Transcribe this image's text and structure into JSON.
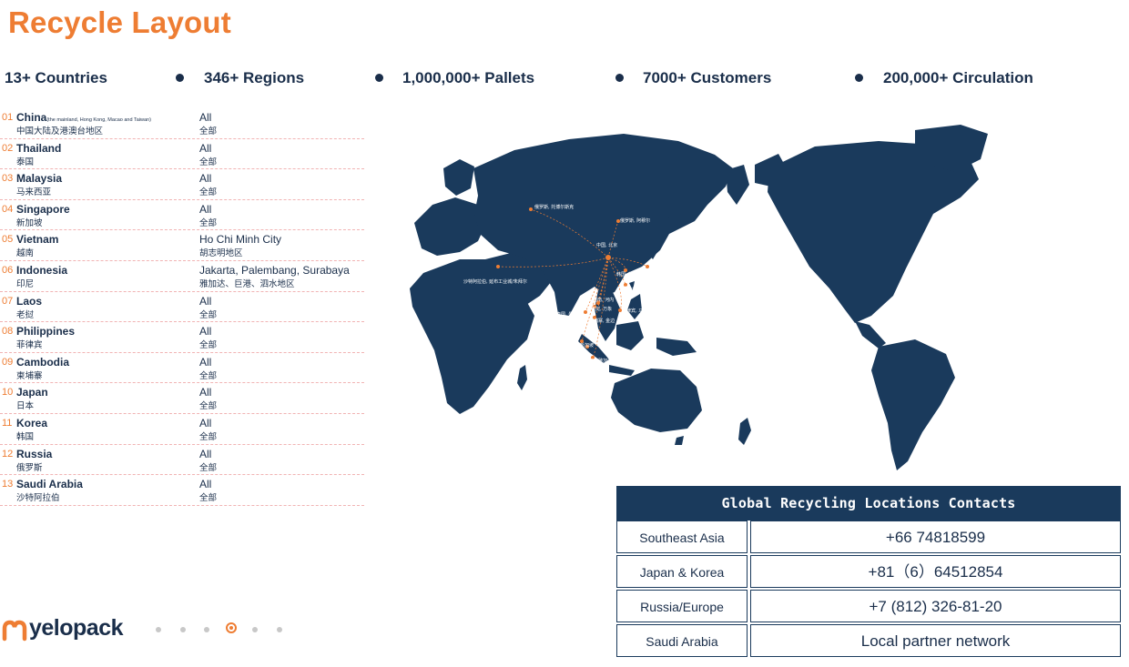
{
  "title": "Recycle Layout",
  "stats": [
    "13+ Countries",
    "346+ Regions",
    "1,000,000+ Pallets",
    "7000+ Customers",
    "200,000+ Circulation"
  ],
  "countries": [
    {
      "num": "01",
      "name": "China",
      "note": "(the mainland, Hong Kong, Macao and Taiwan)",
      "cn": "中国大陆及港澳台地区",
      "region": "All",
      "region_cn": "全部"
    },
    {
      "num": "02",
      "name": "Thailand",
      "note": "",
      "cn": "泰国",
      "region": "All",
      "region_cn": "全部"
    },
    {
      "num": "03",
      "name": "Malaysia",
      "note": "",
      "cn": "马来西亚",
      "region": "All",
      "region_cn": "全部"
    },
    {
      "num": "04",
      "name": "Singapore",
      "note": "",
      "cn": "新加坡",
      "region": "All",
      "region_cn": "全部"
    },
    {
      "num": "05",
      "name": "Vietnam",
      "note": "",
      "cn": "越南",
      "region": "Ho Chi Minh City",
      "region_cn": "胡志明地区"
    },
    {
      "num": "06",
      "name": "Indonesia",
      "note": "",
      "cn": "印尼",
      "region": "Jakarta, Palembang, Surabaya",
      "region_cn": "雅加达、巨港、泗水地区"
    },
    {
      "num": "07",
      "name": "Laos",
      "note": "",
      "cn": "老挝",
      "region": "All",
      "region_cn": "全部"
    },
    {
      "num": "08",
      "name": "Philippines",
      "note": "",
      "cn": "菲律宾",
      "region": "All",
      "region_cn": "全部"
    },
    {
      "num": "09",
      "name": "Cambodia",
      "note": "",
      "cn": "柬埔寨",
      "region": "All",
      "region_cn": "全部"
    },
    {
      "num": "10",
      "name": "Japan",
      "note": "",
      "cn": "日本",
      "region": "All",
      "region_cn": "全部"
    },
    {
      "num": "11",
      "name": "Korea",
      "note": "",
      "cn": "韩国",
      "region": "All",
      "region_cn": "全部"
    },
    {
      "num": "12",
      "name": "Russia",
      "note": "",
      "cn": "俄罗斯",
      "region": "All",
      "region_cn": "全部"
    },
    {
      "num": "13",
      "name": "Saudi Arabia",
      "note": "",
      "cn": "沙特阿拉伯",
      "region": "All",
      "region_cn": "全部"
    }
  ],
  "map": {
    "labels": [
      "俄罗斯, 托博尔斯克",
      "俄罗斯, 阿穆尔",
      "中国, 北京",
      "韩国, 首尔",
      "日本, 东京",
      "沙特阿拉伯, 延布工业城/朱拜尔",
      "中国, 台湾",
      "越南, 河内",
      "老挝, 万象",
      "泰国, 曼谷",
      "菲律宾, 马尼拉",
      "柬埔寨, 金边",
      "马来西亚, 吉隆坡",
      "新加坡",
      "印度尼西亚, 雅加达"
    ],
    "land_color": "#1a3a5c",
    "marker_color": "#ee7d33"
  },
  "contacts": {
    "header": "Global Recycling Locations Contacts",
    "rows": [
      {
        "region": "Southeast Asia",
        "phone": "+66 74818599"
      },
      {
        "region": "Japan & Korea",
        "phone": "+81（6）64512854"
      },
      {
        "region": "Russia/Europe",
        "phone": "+7 (812) 326-81-20"
      },
      {
        "region": "Saudi Arabia",
        "phone": "Local partner network"
      }
    ]
  },
  "logo": {
    "text": "yelopack",
    "icon": "yelopack-logo-icon"
  },
  "pager": {
    "total": 6,
    "active": 4
  }
}
